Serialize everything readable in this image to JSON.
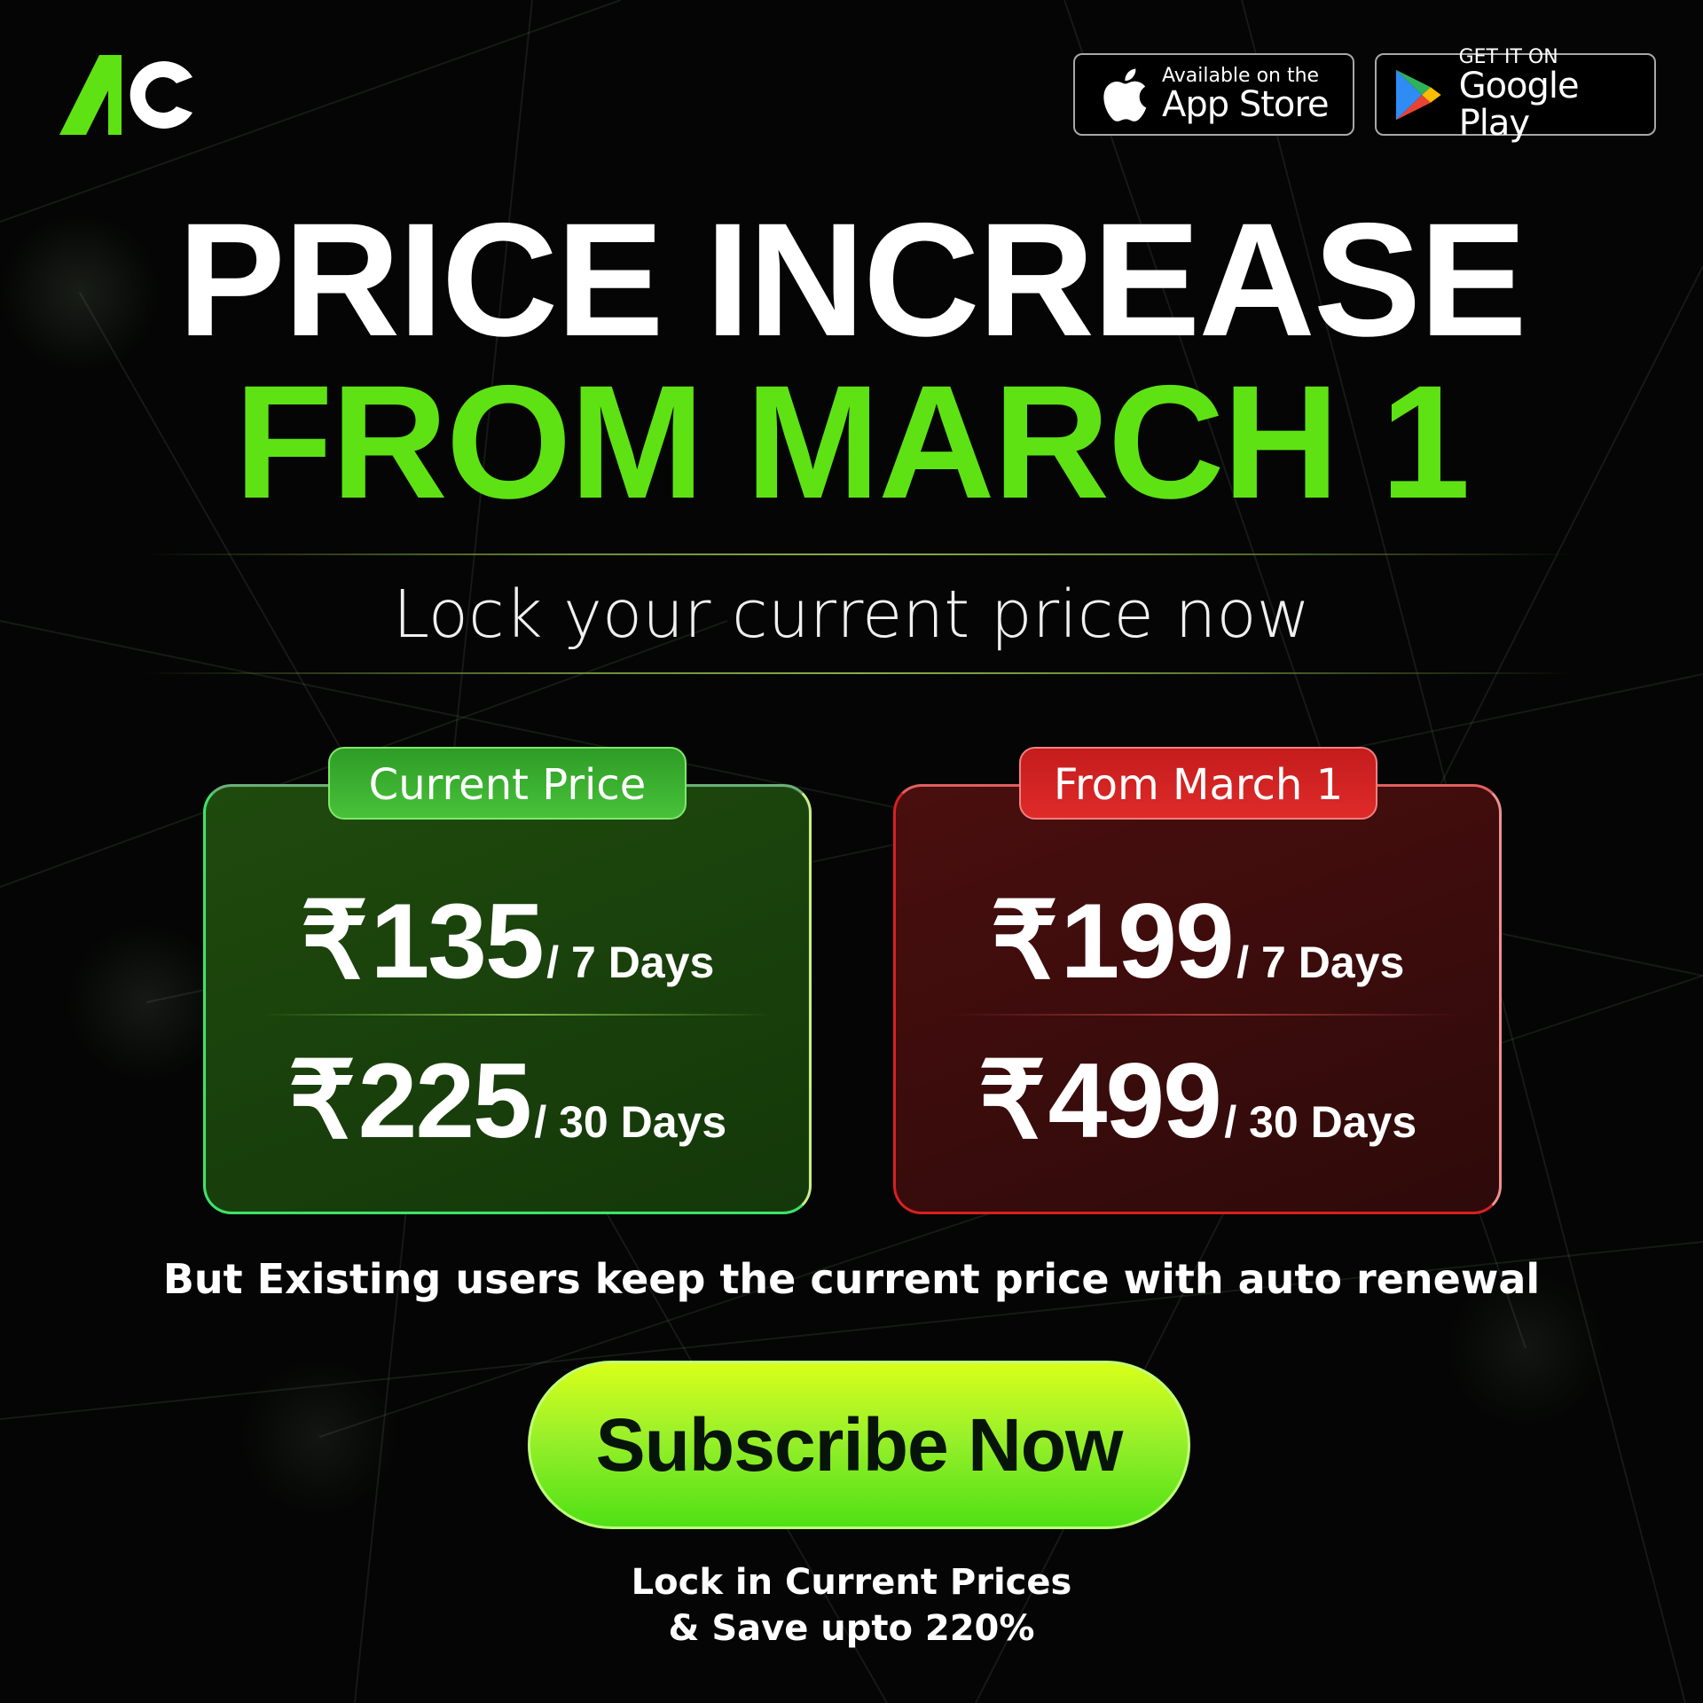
{
  "brand": {
    "logo_text": "AC",
    "accent_color": "#5ee214"
  },
  "stores": {
    "apple": {
      "small": "Available on the",
      "big": "App Store",
      "icon": "apple-icon"
    },
    "google": {
      "small": "GET IT ON",
      "big": "Google Play",
      "icon": "google-play-icon"
    }
  },
  "headline": {
    "line1": "PRICE INCREASE",
    "line2": "FROM MARCH 1"
  },
  "subtitle": "Lock your current price now",
  "current": {
    "tag": "Current Price",
    "rows": [
      {
        "currency": "₹",
        "amount": "135",
        "period": "/ 7 Days"
      },
      {
        "currency": "₹",
        "amount": "225",
        "period": "/ 30 Days"
      }
    ]
  },
  "future": {
    "tag": "From March 1",
    "rows": [
      {
        "currency": "₹",
        "amount": "199",
        "period": "/ 7 Days"
      },
      {
        "currency": "₹",
        "amount": "499",
        "period": "/ 30 Days"
      }
    ]
  },
  "note": "But Existing users keep the current price with auto renewal",
  "cta": "Subscribe Now",
  "footer": {
    "line1": "Lock in Current Prices",
    "line2": "& Save upto 220%"
  }
}
